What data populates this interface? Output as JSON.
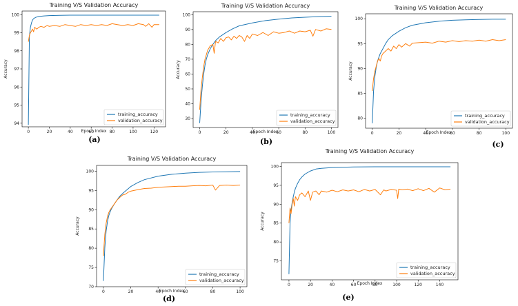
{
  "colors": {
    "training": "#1f77b4",
    "validation": "#ff7f0e"
  },
  "chart_data": [
    {
      "type": "line",
      "panel_label": "(a)",
      "title": "Training V/S Validation Accuracy",
      "xlabel": "Epoch Index",
      "ylabel": "Accuracy",
      "xlim": [
        -6,
        131
      ],
      "ylim": [
        93.8,
        100.2
      ],
      "xticks": [
        0,
        20,
        40,
        60,
        80,
        100,
        120
      ],
      "yticks": [
        94,
        95,
        96,
        97,
        98,
        99,
        100
      ],
      "legend_position": "lower-right",
      "grid": false,
      "series": [
        {
          "name": "training_accuracy",
          "x": [
            0,
            1,
            2,
            3,
            4,
            5,
            7,
            10,
            15,
            20,
            30,
            40,
            60,
            80,
            100,
            125
          ],
          "y": [
            93.9,
            98.8,
            99.3,
            99.55,
            99.7,
            99.78,
            99.85,
            99.9,
            99.93,
            99.95,
            99.96,
            99.97,
            99.97,
            99.97,
            99.97,
            99.97
          ]
        },
        {
          "name": "validation_accuracy",
          "x": [
            0,
            1,
            2,
            3,
            4,
            5,
            6,
            8,
            10,
            12,
            15,
            18,
            20,
            25,
            30,
            35,
            40,
            45,
            50,
            55,
            60,
            65,
            70,
            75,
            80,
            85,
            90,
            95,
            100,
            105,
            110,
            112,
            115,
            118,
            120,
            125
          ],
          "y": [
            98.5,
            98.85,
            99.0,
            99.1,
            99.2,
            99.05,
            99.3,
            99.2,
            99.3,
            99.35,
            99.3,
            99.4,
            99.35,
            99.4,
            99.35,
            99.45,
            99.4,
            99.35,
            99.45,
            99.4,
            99.45,
            99.4,
            99.45,
            99.4,
            99.5,
            99.45,
            99.4,
            99.45,
            99.4,
            99.5,
            99.45,
            99.35,
            99.5,
            99.3,
            99.45,
            99.45
          ]
        }
      ]
    },
    {
      "type": "line",
      "panel_label": "(b)",
      "title": "Training V/S Validation Accuracy",
      "xlabel": "Epoch Index",
      "ylabel": "Accuracy",
      "xlim": [
        -5,
        105
      ],
      "ylim": [
        24,
        102
      ],
      "xticks": [
        0,
        20,
        40,
        60,
        80,
        100
      ],
      "yticks": [
        30,
        40,
        50,
        60,
        70,
        80,
        90,
        100
      ],
      "legend_position": "lower-right",
      "grid": false,
      "series": [
        {
          "name": "training_accuracy",
          "x": [
            0,
            1,
            2,
            3,
            4,
            5,
            6,
            8,
            10,
            12,
            15,
            20,
            25,
            30,
            40,
            50,
            60,
            70,
            80,
            90,
            100
          ],
          "y": [
            27,
            42,
            52,
            60,
            66,
            70,
            73,
            77,
            80,
            82.5,
            85,
            88,
            90.5,
            92.5,
            94.5,
            96,
            97,
            97.8,
            98.3,
            98.7,
            99
          ]
        },
        {
          "name": "validation_accuracy",
          "x": [
            0,
            1,
            2,
            3,
            4,
            5,
            6,
            8,
            10,
            11,
            12,
            14,
            16,
            18,
            20,
            22,
            24,
            26,
            28,
            30,
            32,
            34,
            36,
            38,
            40,
            44,
            48,
            52,
            56,
            60,
            64,
            68,
            72,
            76,
            80,
            84,
            86,
            88,
            92,
            96,
            100
          ],
          "y": [
            36,
            50,
            58,
            65,
            70,
            73,
            76,
            79,
            80,
            74,
            82,
            81,
            84,
            82,
            84.5,
            85,
            83,
            85.5,
            84,
            86,
            85,
            82,
            86,
            84,
            87,
            86,
            88,
            86,
            88.5,
            87.5,
            88,
            89,
            87.5,
            89,
            88.5,
            89.5,
            85.5,
            90,
            89,
            90.5,
            90
          ]
        }
      ]
    },
    {
      "type": "line",
      "panel_label": "(c)",
      "title": "Training V/S Validation Accuracy",
      "xlabel": "Epoch Index",
      "ylabel": "Accuracy",
      "xlim": [
        -5,
        105
      ],
      "ylim": [
        78,
        101
      ],
      "xticks": [
        0,
        20,
        40,
        60,
        80,
        100
      ],
      "yticks": [
        80,
        85,
        90,
        95,
        100
      ],
      "legend_position": "lower-right",
      "grid": false,
      "series": [
        {
          "name": "training_accuracy",
          "x": [
            0,
            1,
            2,
            3,
            4,
            5,
            6,
            8,
            10,
            12,
            15,
            20,
            25,
            30,
            40,
            50,
            60,
            70,
            80,
            90,
            100
          ],
          "y": [
            79,
            85.5,
            88.5,
            90.3,
            91.5,
            92.3,
            93,
            94,
            95,
            95.8,
            96.6,
            97.5,
            98.2,
            98.7,
            99.2,
            99.5,
            99.7,
            99.8,
            99.85,
            99.9,
            99.9
          ]
        },
        {
          "name": "validation_accuracy",
          "x": [
            0,
            1,
            2,
            3,
            4,
            5,
            6,
            7,
            8,
            10,
            12,
            14,
            16,
            18,
            20,
            22,
            25,
            28,
            30,
            35,
            40,
            45,
            50,
            55,
            60,
            65,
            70,
            75,
            80,
            85,
            90,
            95,
            100
          ],
          "y": [
            85.5,
            88,
            89.5,
            90.5,
            91.5,
            92,
            91.5,
            92.5,
            93,
            93.5,
            94,
            93.5,
            94.5,
            94,
            94.8,
            94.3,
            95,
            94.5,
            95.1,
            95.2,
            95.3,
            95.1,
            95.5,
            95.3,
            95.6,
            95.4,
            95.6,
            95.5,
            95.7,
            95.5,
            95.8,
            95.6,
            95.8
          ]
        }
      ]
    },
    {
      "type": "line",
      "panel_label": "(d)",
      "title": "Training V/S Validation Accuracy",
      "xlabel": "Epoch Index",
      "ylabel": "Accuracy",
      "xlim": [
        -5,
        105
      ],
      "ylim": [
        70,
        101.5
      ],
      "xticks": [
        0,
        20,
        40,
        60,
        80,
        100
      ],
      "yticks": [
        70,
        75,
        80,
        85,
        90,
        95,
        100
      ],
      "legend_position": "lower-right",
      "grid": false,
      "series": [
        {
          "name": "training_accuracy",
          "x": [
            0,
            1,
            2,
            3,
            4,
            5,
            6,
            8,
            10,
            12,
            15,
            20,
            25,
            30,
            40,
            50,
            60,
            70,
            80,
            90,
            100
          ],
          "y": [
            71.5,
            80,
            84.5,
            87,
            88.5,
            89.5,
            90.3,
            91.5,
            92.5,
            93.5,
            94.5,
            96,
            97,
            97.8,
            98.7,
            99.2,
            99.5,
            99.7,
            99.8,
            99.85,
            99.9
          ]
        },
        {
          "name": "validation_accuracy",
          "x": [
            0,
            1,
            2,
            3,
            4,
            5,
            6,
            8,
            10,
            12,
            14,
            16,
            18,
            20,
            25,
            30,
            35,
            40,
            45,
            50,
            55,
            60,
            65,
            70,
            75,
            80,
            82,
            85,
            90,
            95,
            100
          ],
          "y": [
            78,
            83.5,
            86.5,
            88.3,
            89.3,
            90,
            90.5,
            91.5,
            92.5,
            93.2,
            93.8,
            94,
            94.5,
            94.8,
            95.2,
            95.5,
            95.6,
            95.8,
            95.9,
            96,
            96.1,
            96.1,
            96.2,
            96.3,
            96.2,
            96.4,
            95.1,
            96.3,
            96.4,
            96.3,
            96.4
          ]
        }
      ]
    },
    {
      "type": "line",
      "panel_label": "(e)",
      "title": "Training V/S Validation Accuracy",
      "xlabel": "Epoch Index",
      "ylabel": "Accuracy",
      "xlim": [
        -7,
        157
      ],
      "ylim": [
        70,
        101
      ],
      "xticks": [
        0,
        20,
        40,
        60,
        80,
        100,
        120,
        140
      ],
      "yticks": [
        75,
        80,
        85,
        90,
        95,
        100
      ],
      "legend_position": "lower-right",
      "grid": false,
      "series": [
        {
          "name": "training_accuracy",
          "x": [
            0,
            1,
            2,
            3,
            4,
            5,
            6,
            8,
            10,
            12,
            15,
            20,
            25,
            30,
            40,
            50,
            60,
            80,
            100,
            120,
            150
          ],
          "y": [
            71.5,
            85,
            88.5,
            90.5,
            92,
            93.2,
            94.2,
            95.5,
            96.5,
            97.2,
            98,
            98.8,
            99.3,
            99.5,
            99.7,
            99.8,
            99.85,
            99.9,
            99.9,
            99.9,
            99.9
          ]
        },
        {
          "name": "validation_accuracy",
          "x": [
            0,
            1,
            2,
            3,
            4,
            5,
            6,
            8,
            10,
            12,
            15,
            18,
            20,
            22,
            25,
            28,
            30,
            35,
            40,
            45,
            50,
            55,
            60,
            65,
            70,
            75,
            80,
            85,
            88,
            90,
            95,
            100,
            101,
            102,
            105,
            110,
            115,
            120,
            125,
            130,
            135,
            140,
            145,
            150
          ],
          "y": [
            85,
            89,
            87.5,
            90,
            91.5,
            89.5,
            92,
            91,
            92.5,
            93,
            92,
            93.5,
            91,
            93.2,
            93.5,
            92.5,
            93.5,
            93.2,
            93.7,
            93.3,
            93.8,
            93.5,
            93.8,
            93.3,
            93.9,
            93.5,
            93.9,
            92.5,
            93.8,
            93.5,
            93.9,
            93.7,
            91.5,
            94,
            93.8,
            94,
            93.6,
            94.1,
            93.6,
            94.2,
            93.2,
            94.3,
            93.8,
            94
          ]
        }
      ]
    }
  ]
}
